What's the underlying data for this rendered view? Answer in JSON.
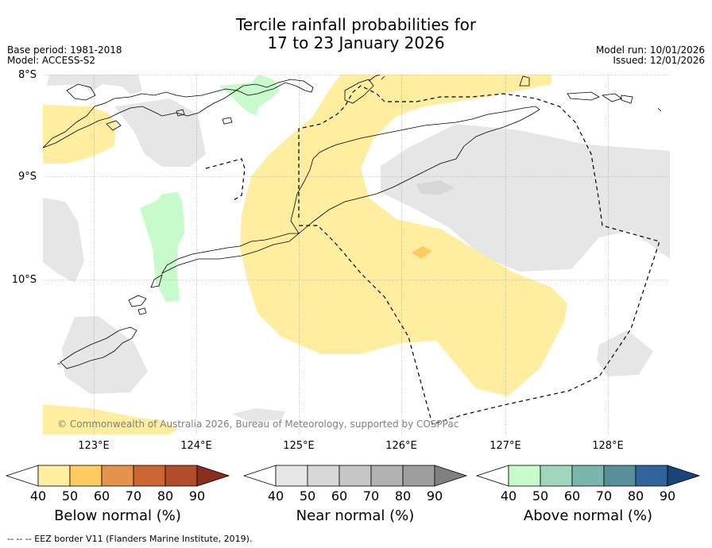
{
  "title": {
    "line1": "Tercile rainfall probabilities for",
    "line2": "17 to 23 January 2026"
  },
  "meta": {
    "base_period": "Base period: 1981-2018",
    "model": "Model: ACCESS-S2",
    "model_run": "Model run: 10/01/2026",
    "issued": "Issued: 12/01/2026"
  },
  "map": {
    "lat_labels": [
      "8°S",
      "9°S",
      "10°S"
    ],
    "lon_labels": [
      "123°E",
      "124°E",
      "125°E",
      "126°E",
      "127°E",
      "128°E"
    ],
    "copyright": "© Commonwealth of Australia 2026, Bureau of Meteorology, supported by COSPPac"
  },
  "legends": [
    {
      "title": "Below normal (%)",
      "ticks": [
        "40",
        "50",
        "60",
        "70",
        "80",
        "90"
      ],
      "colors": [
        "#ffffff",
        "#ffeda0",
        "#fecb63",
        "#e3934a",
        "#cc6433",
        "#b14d28",
        "#8a2d1c"
      ]
    },
    {
      "title": "Near normal (%)",
      "ticks": [
        "40",
        "50",
        "60",
        "70",
        "80",
        "90"
      ],
      "colors": [
        "#ffffff",
        "#e6e6e6",
        "#d7d7d7",
        "#c6c6c6",
        "#b2b2b2",
        "#9e9e9e",
        "#808080"
      ]
    },
    {
      "title": "Above normal (%)",
      "ticks": [
        "40",
        "50",
        "60",
        "70",
        "80",
        "90"
      ],
      "colors": [
        "#ffffff",
        "#c8fbcc",
        "#a1d6bd",
        "#7ab6ae",
        "#57909b",
        "#30649a",
        "#184479"
      ]
    }
  ],
  "footer": {
    "eez_note": "--  --  -- EEZ border V11 (Flanders Marine Institute, 2019)."
  },
  "colors": {
    "below_50": "#ffeda0",
    "below_60": "#fecb63",
    "near_50": "#e6e6e6",
    "near_60": "#d7d7d7",
    "above_50": "#c8fbcc",
    "grid": "#999999"
  }
}
